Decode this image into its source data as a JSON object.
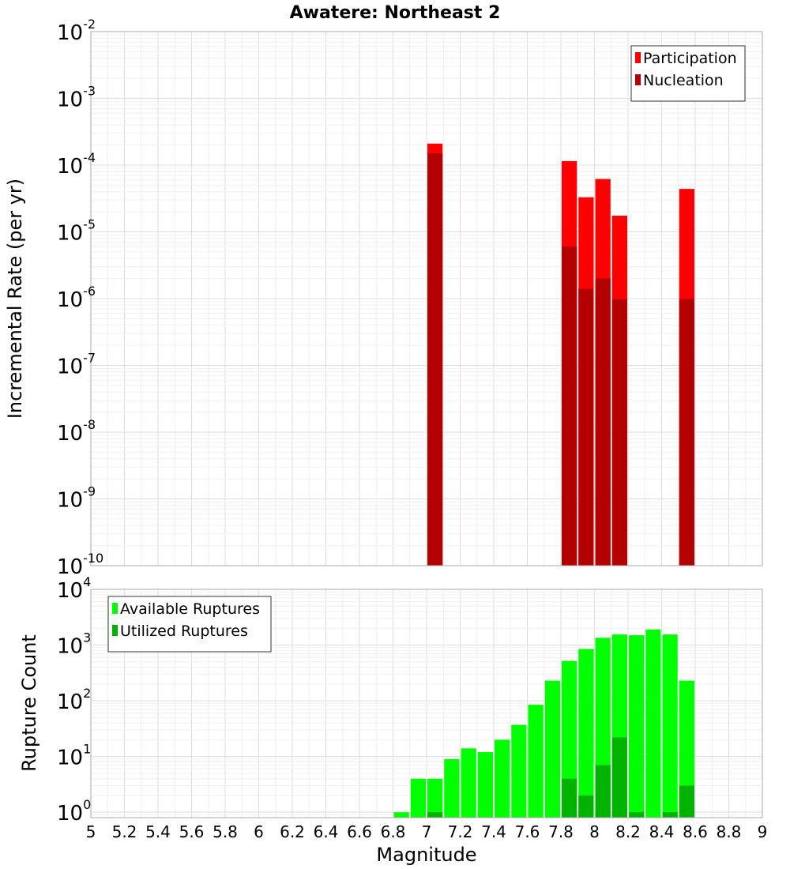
{
  "chart_data": {
    "title": "Awatere: Northeast 2",
    "xlabel": "Magnitude",
    "xlim": [
      5,
      9
    ],
    "xticks": [
      "5",
      "5.2",
      "5.4",
      "5.6",
      "5.8",
      "6",
      "6.2",
      "6.4",
      "6.6",
      "6.8",
      "7",
      "7.2",
      "7.4",
      "7.6",
      "7.8",
      "8",
      "8.2",
      "8.4",
      "8.6",
      "8.8",
      "9"
    ],
    "bin_width": 0.1,
    "grid": true,
    "panels": [
      {
        "type": "bar",
        "yscale": "log",
        "ylabel": "Incremental Rate (per yr)",
        "ylim": [
          1e-10,
          0.01
        ],
        "ytick_exponents": [
          -10,
          -9,
          -8,
          -7,
          -6,
          -5,
          -4,
          -3,
          -2
        ],
        "legend_position": "top-right",
        "series": [
          {
            "name": "Participation",
            "color": "#ff0000",
            "x": [
              7.05,
              7.85,
              7.95,
              8.05,
              8.15,
              8.55
            ],
            "values": [
              0.00021,
              0.000115,
              3.3e-05,
              6.2e-05,
              1.75e-05,
              4.4e-05
            ]
          },
          {
            "name": "Nucleation",
            "color": "#b30000",
            "x": [
              7.05,
              7.85,
              7.95,
              8.05,
              8.15,
              8.55
            ],
            "values": [
              0.00015,
              6e-06,
              1.4e-06,
              2e-06,
              9.7e-07,
              9.9e-07
            ]
          }
        ]
      },
      {
        "type": "bar",
        "yscale": "log",
        "ylabel": "Rupture Count",
        "ylim": [
          0.8,
          10000.0
        ],
        "ytick_exponents": [
          0,
          1,
          2,
          3,
          4
        ],
        "legend_position": "top-left",
        "series": [
          {
            "name": "Available Ruptures",
            "color": "#00ff00",
            "x": [
              6.85,
              6.95,
              7.05,
              7.15,
              7.25,
              7.35,
              7.45,
              7.55,
              7.65,
              7.75,
              7.85,
              7.95,
              8.05,
              8.15,
              8.25,
              8.35,
              8.45,
              8.55
            ],
            "values": [
              1,
              4,
              4,
              9,
              14,
              12,
              20,
              37,
              85,
              230,
              520,
              850,
              1350,
              1550,
              1500,
              1900,
              1550,
              230
            ]
          },
          {
            "name": "Utilized Ruptures",
            "color": "#00b300",
            "x": [
              7.05,
              7.85,
              7.95,
              8.05,
              8.15,
              8.25,
              8.45,
              8.55
            ],
            "values": [
              1,
              4,
              2,
              7,
              22,
              1,
              1,
              3
            ]
          }
        ]
      }
    ]
  }
}
